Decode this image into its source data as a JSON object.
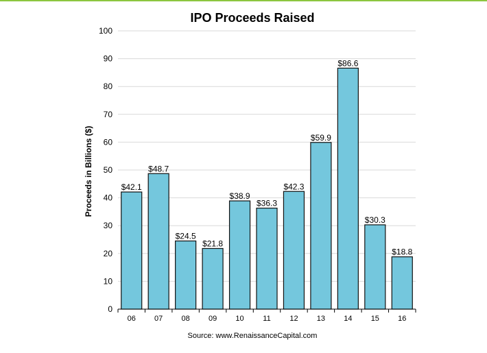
{
  "colors": {
    "accent_rule": "#8cc63f",
    "bar_fill": "#74c7dd",
    "bar_stroke": "#111111",
    "grid": "#d9d9d9"
  },
  "chart_data": {
    "type": "bar",
    "title": "IPO Proceeds Raised",
    "xlabel": "",
    "ylabel": "Proceeds in Billions ($)",
    "categories": [
      "06",
      "07",
      "08",
      "09",
      "10",
      "11",
      "12",
      "13",
      "14",
      "15",
      "16"
    ],
    "values": [
      42.1,
      48.7,
      24.5,
      21.8,
      38.9,
      36.3,
      42.3,
      59.9,
      86.6,
      30.3,
      18.8
    ],
    "data_labels": [
      "$42.1",
      "$48.7",
      "$24.5",
      "$21.8",
      "$38.9",
      "$36.3",
      "$42.3",
      "$59.9",
      "$86.6",
      "$30.3",
      "$18.8"
    ],
    "ylim": [
      0,
      100
    ],
    "yticks": [
      0,
      10,
      20,
      30,
      40,
      50,
      60,
      70,
      80,
      90,
      100
    ],
    "grid": true,
    "source": "Source: www.RenaissanceCapital.com"
  }
}
